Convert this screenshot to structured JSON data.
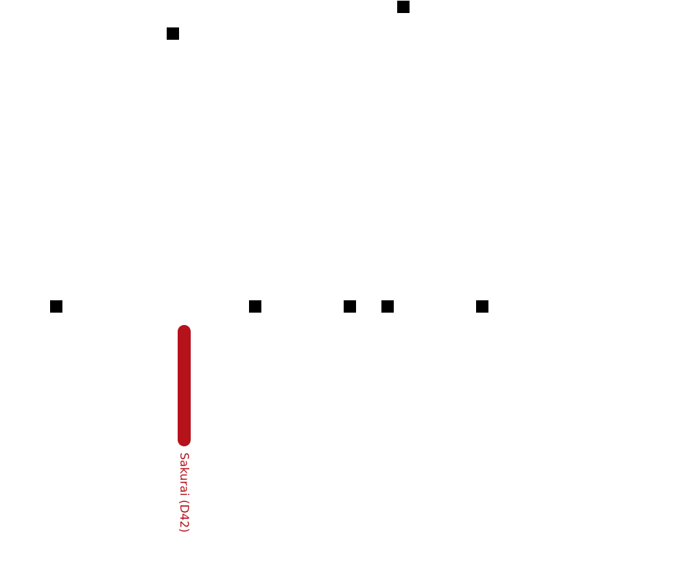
{
  "line_label": "Sakurai (D42)"
}
